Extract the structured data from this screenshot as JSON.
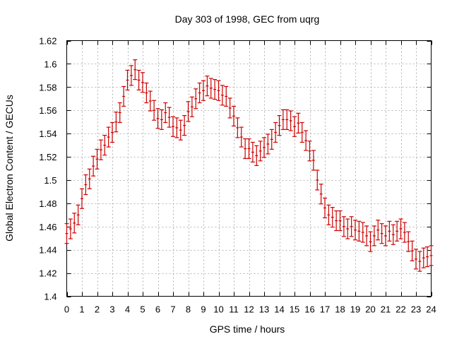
{
  "chart_data": {
    "type": "scatter",
    "title": "Day 303 of 1998, GEC from uqrg",
    "xlabel": "GPS time / hours",
    "ylabel": "Global Electron Content / GECUs",
    "xlim": [
      0,
      24
    ],
    "ylim": [
      1.4,
      1.62
    ],
    "grid": true,
    "x_ticks": [
      0,
      1,
      2,
      3,
      4,
      5,
      6,
      7,
      8,
      9,
      10,
      11,
      12,
      13,
      14,
      15,
      16,
      17,
      18,
      19,
      20,
      21,
      22,
      23,
      24
    ],
    "x_tick_labels": [
      "0",
      "1",
      "2",
      "3",
      "4",
      "5",
      "6",
      "7",
      "8",
      "9",
      "10",
      "11",
      "12",
      "13",
      "14",
      "15",
      "16",
      "17",
      "18",
      "19",
      "20",
      "21",
      "22",
      "23",
      "24"
    ],
    "y_ticks": [
      1.4,
      1.42,
      1.44,
      1.46,
      1.48,
      1.5,
      1.52,
      1.54,
      1.56,
      1.58,
      1.6,
      1.62
    ],
    "y_tick_labels": [
      "1.4",
      "1.42",
      "1.44",
      "1.46",
      "1.48",
      "1.5",
      "1.52",
      "1.54",
      "1.56",
      "1.58",
      "1.6",
      "1.62"
    ],
    "color": "#cc0000",
    "error": 0.0085,
    "series": [
      {
        "name": "GEC",
        "x": [
          0,
          0.25,
          0.5,
          0.75,
          1,
          1.25,
          1.5,
          1.75,
          2,
          2.25,
          2.5,
          2.75,
          3,
          3.25,
          3.5,
          3.75,
          4,
          4.25,
          4.5,
          4.75,
          5,
          5.25,
          5.5,
          5.75,
          6,
          6.25,
          6.5,
          6.75,
          7,
          7.25,
          7.5,
          7.75,
          8,
          8.25,
          8.5,
          8.75,
          9,
          9.25,
          9.5,
          9.75,
          10,
          10.25,
          10.5,
          10.75,
          11,
          11.25,
          11.5,
          11.75,
          12,
          12.25,
          12.5,
          12.75,
          13,
          13.25,
          13.5,
          13.75,
          14,
          14.25,
          14.5,
          14.75,
          15,
          15.25,
          15.5,
          15.75,
          16,
          16.25,
          16.5,
          16.75,
          17,
          17.25,
          17.5,
          17.75,
          18,
          18.25,
          18.5,
          18.75,
          19,
          19.25,
          19.5,
          19.75,
          20,
          20.25,
          20.5,
          20.75,
          21,
          21.25,
          21.5,
          21.75,
          22,
          22.25,
          22.5,
          22.75,
          23,
          23.25,
          23.5,
          23.75,
          24
        ],
        "y": [
          1.454,
          1.458,
          1.463,
          1.47,
          1.484,
          1.496,
          1.501,
          1.512,
          1.518,
          1.526,
          1.53,
          1.537,
          1.541,
          1.55,
          1.558,
          1.572,
          1.586,
          1.59,
          1.595,
          1.586,
          1.584,
          1.575,
          1.568,
          1.56,
          1.553,
          1.552,
          1.558,
          1.554,
          1.546,
          1.545,
          1.543,
          1.547,
          1.559,
          1.563,
          1.57,
          1.575,
          1.577,
          1.581,
          1.579,
          1.578,
          1.577,
          1.573,
          1.572,
          1.562,
          1.555,
          1.545,
          1.537,
          1.527,
          1.527,
          1.524,
          1.521,
          1.525,
          1.528,
          1.531,
          1.535,
          1.541,
          1.547,
          1.552,
          1.552,
          1.551,
          1.546,
          1.549,
          1.541,
          1.534,
          1.525,
          1.517,
          1.5,
          1.488,
          1.476,
          1.47,
          1.468,
          1.465,
          1.465,
          1.46,
          1.458,
          1.46,
          1.457,
          1.456,
          1.455,
          1.452,
          1.447,
          1.452,
          1.457,
          1.454,
          1.452,
          1.456,
          1.453,
          1.456,
          1.458,
          1.455,
          1.447,
          1.439,
          1.432,
          1.43,
          1.433,
          1.434,
          1.435
        ]
      }
    ]
  }
}
